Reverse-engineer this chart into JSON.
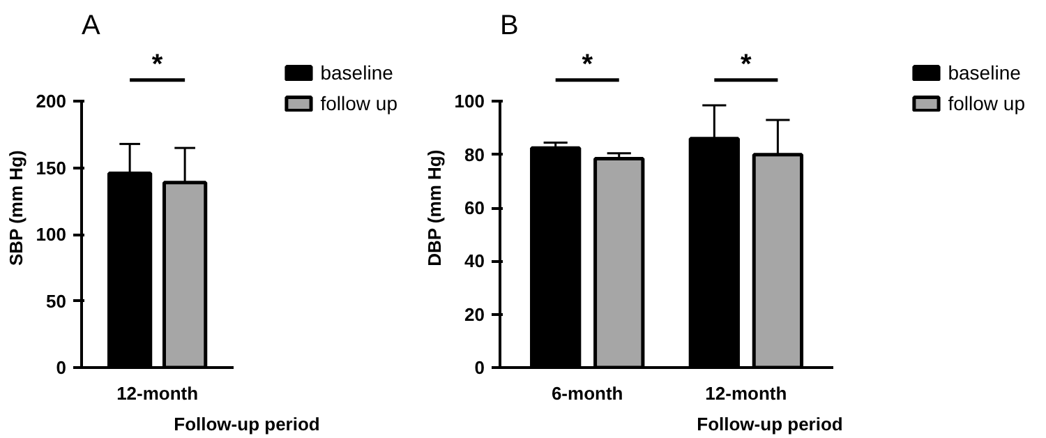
{
  "chart_data": [
    {
      "type": "bar",
      "title": "A",
      "xlabel": "Follow-up period",
      "ylabel": "SBP (mm Hg)",
      "categories": [
        "12-month"
      ],
      "ylim": [
        0,
        200
      ],
      "yticks": [
        0,
        50,
        100,
        150,
        200
      ],
      "legend": "top right",
      "grid": false,
      "series": [
        {
          "name": "baseline",
          "color": "#000000",
          "values": [
            146
          ],
          "errors": [
            [
              146,
              168
            ]
          ]
        },
        {
          "name": "follow up",
          "color": "#a6a6a6",
          "values": [
            139
          ],
          "errors": [
            [
              139,
              165
            ]
          ]
        }
      ],
      "annotations": [
        "*"
      ]
    },
    {
      "type": "bar",
      "title": "B",
      "xlabel": "Follow-up period",
      "ylabel": "DBP (mm Hg)",
      "categories": [
        "6-month",
        "12-month"
      ],
      "ylim": [
        0,
        100
      ],
      "yticks": [
        0,
        20,
        40,
        60,
        80,
        100
      ],
      "legend": "top right",
      "grid": false,
      "series": [
        {
          "name": "baseline",
          "color": "#000000",
          "values": [
            82.5,
            86
          ],
          "errors": [
            [
              82.5,
              84.5
            ],
            [
              86,
              98.5
            ]
          ]
        },
        {
          "name": "follow up",
          "color": "#a6a6a6",
          "values": [
            78.5,
            80
          ],
          "errors": [
            [
              78.5,
              80.5
            ],
            [
              80,
              93
            ]
          ]
        }
      ],
      "annotations": [
        "*",
        "*"
      ]
    }
  ]
}
